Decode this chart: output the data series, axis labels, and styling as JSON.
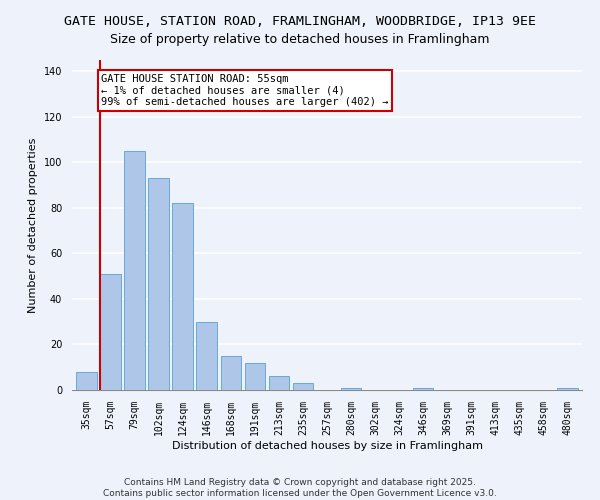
{
  "title": "GATE HOUSE, STATION ROAD, FRAMLINGHAM, WOODBRIDGE, IP13 9EE",
  "subtitle": "Size of property relative to detached houses in Framlingham",
  "xlabel": "Distribution of detached houses by size in Framlingham",
  "ylabel": "Number of detached properties",
  "bar_labels": [
    "35sqm",
    "57sqm",
    "79sqm",
    "102sqm",
    "124sqm",
    "146sqm",
    "168sqm",
    "191sqm",
    "213sqm",
    "235sqm",
    "257sqm",
    "280sqm",
    "302sqm",
    "324sqm",
    "346sqm",
    "369sqm",
    "391sqm",
    "413sqm",
    "435sqm",
    "458sqm",
    "480sqm"
  ],
  "bar_values": [
    8,
    51,
    105,
    93,
    82,
    30,
    15,
    12,
    6,
    3,
    0,
    1,
    0,
    0,
    1,
    0,
    0,
    0,
    0,
    0,
    1
  ],
  "bar_color": "#aec6e8",
  "bar_edge_color": "#5a9fd4",
  "vline_color": "#cc0000",
  "annotation_line1": "GATE HOUSE STATION ROAD: 55sqm",
  "annotation_line2": "← 1% of detached houses are smaller (4)",
  "annotation_line3": "99% of semi-detached houses are larger (402) →",
  "annotation_box_color": "#ffffff",
  "annotation_box_edge": "#cc0000",
  "ylim": [
    0,
    145
  ],
  "yticks": [
    0,
    20,
    40,
    60,
    80,
    100,
    120,
    140
  ],
  "footer1": "Contains HM Land Registry data © Crown copyright and database right 2025.",
  "footer2": "Contains public sector information licensed under the Open Government Licence v3.0.",
  "bg_color": "#eef2fb",
  "grid_color": "#ffffff",
  "title_fontsize": 9.5,
  "subtitle_fontsize": 9,
  "axis_label_fontsize": 8,
  "tick_fontsize": 7,
  "annotation_fontsize": 7.5,
  "footer_fontsize": 6.5
}
